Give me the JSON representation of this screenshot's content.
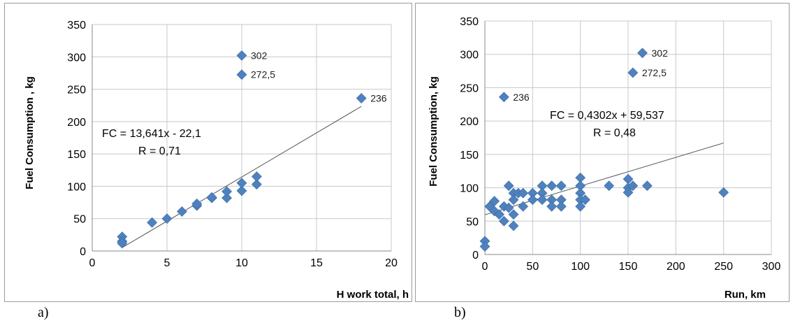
{
  "chart_data": [
    {
      "type": "scatter",
      "panel_label": "a)",
      "xlabel": "H work total, h",
      "ylabel": "Fuel Consumption , kg",
      "xlim": [
        0,
        20
      ],
      "ylim": [
        0,
        350
      ],
      "xticks": [
        0,
        5,
        10,
        15,
        20
      ],
      "yticks": [
        0,
        50,
        100,
        150,
        200,
        250,
        300,
        350
      ],
      "grid": "vertical and horizontal major gridlines",
      "marker_color": "#4f81bd",
      "line_color": "#555555",
      "points": [
        {
          "x": 2,
          "y": 22
        },
        {
          "x": 2,
          "y": 15
        },
        {
          "x": 2,
          "y": 12
        },
        {
          "x": 4,
          "y": 44
        },
        {
          "x": 5,
          "y": 50
        },
        {
          "x": 6,
          "y": 61
        },
        {
          "x": 7,
          "y": 70
        },
        {
          "x": 7,
          "y": 73
        },
        {
          "x": 8,
          "y": 82
        },
        {
          "x": 8,
          "y": 83
        },
        {
          "x": 9,
          "y": 82
        },
        {
          "x": 9,
          "y": 92
        },
        {
          "x": 10,
          "y": 93
        },
        {
          "x": 10,
          "y": 105
        },
        {
          "x": 11,
          "y": 103
        },
        {
          "x": 11,
          "y": 115
        },
        {
          "x": 10,
          "y": 302
        },
        {
          "x": 10,
          "y": 272.5
        },
        {
          "x": 18,
          "y": 236
        }
      ],
      "data_labels": [
        {
          "x": 10,
          "y": 302,
          "text": "302"
        },
        {
          "x": 10,
          "y": 272.5,
          "text": "272,5"
        },
        {
          "x": 18,
          "y": 236,
          "text": "236"
        }
      ],
      "trendline": {
        "x_start": 2,
        "x_end": 18,
        "slope": 13.641,
        "intercept": -22.1
      },
      "equation": [
        "FC = 13,641x - 22,1",
        "R = 0,71"
      ]
    },
    {
      "type": "scatter",
      "panel_label": "b)",
      "xlabel": "Run, km",
      "ylabel": "Fuel Consumption, kg",
      "xlim": [
        0,
        300
      ],
      "ylim": [
        0,
        350
      ],
      "xticks": [
        0,
        50,
        100,
        150,
        200,
        250,
        300
      ],
      "yticks": [
        0,
        50,
        100,
        150,
        200,
        250,
        300,
        350
      ],
      "grid": "vertical and horizontal major gridlines",
      "marker_color": "#4f81bd",
      "line_color": "#555555",
      "points": [
        {
          "x": 0,
          "y": 20
        },
        {
          "x": 0,
          "y": 12
        },
        {
          "x": 5,
          "y": 72
        },
        {
          "x": 10,
          "y": 80
        },
        {
          "x": 10,
          "y": 65
        },
        {
          "x": 15,
          "y": 60
        },
        {
          "x": 20,
          "y": 72
        },
        {
          "x": 20,
          "y": 50
        },
        {
          "x": 25,
          "y": 103
        },
        {
          "x": 25,
          "y": 70
        },
        {
          "x": 30,
          "y": 92
        },
        {
          "x": 30,
          "y": 82
        },
        {
          "x": 30,
          "y": 60
        },
        {
          "x": 30,
          "y": 43
        },
        {
          "x": 35,
          "y": 92
        },
        {
          "x": 40,
          "y": 92
        },
        {
          "x": 40,
          "y": 72
        },
        {
          "x": 50,
          "y": 92
        },
        {
          "x": 50,
          "y": 82
        },
        {
          "x": 60,
          "y": 103
        },
        {
          "x": 60,
          "y": 92
        },
        {
          "x": 60,
          "y": 82
        },
        {
          "x": 70,
          "y": 103
        },
        {
          "x": 70,
          "y": 82
        },
        {
          "x": 70,
          "y": 72
        },
        {
          "x": 80,
          "y": 103
        },
        {
          "x": 80,
          "y": 82
        },
        {
          "x": 80,
          "y": 72
        },
        {
          "x": 100,
          "y": 115
        },
        {
          "x": 100,
          "y": 103
        },
        {
          "x": 100,
          "y": 92
        },
        {
          "x": 100,
          "y": 82
        },
        {
          "x": 100,
          "y": 72
        },
        {
          "x": 105,
          "y": 82
        },
        {
          "x": 130,
          "y": 103
        },
        {
          "x": 150,
          "y": 113
        },
        {
          "x": 150,
          "y": 100
        },
        {
          "x": 150,
          "y": 93
        },
        {
          "x": 155,
          "y": 103
        },
        {
          "x": 170,
          "y": 103
        },
        {
          "x": 250,
          "y": 93
        },
        {
          "x": 20,
          "y": 236
        },
        {
          "x": 155,
          "y": 272.5
        },
        {
          "x": 165,
          "y": 302
        }
      ],
      "data_labels": [
        {
          "x": 165,
          "y": 302,
          "text": "302"
        },
        {
          "x": 155,
          "y": 272.5,
          "text": "272,5"
        },
        {
          "x": 20,
          "y": 236,
          "text": "236"
        }
      ],
      "trendline": {
        "x_start": 0,
        "x_end": 250,
        "slope": 0.4302,
        "intercept": 59.537
      },
      "equation": [
        "FC = 0,4302x + 59,537",
        "R = 0,48"
      ]
    }
  ]
}
